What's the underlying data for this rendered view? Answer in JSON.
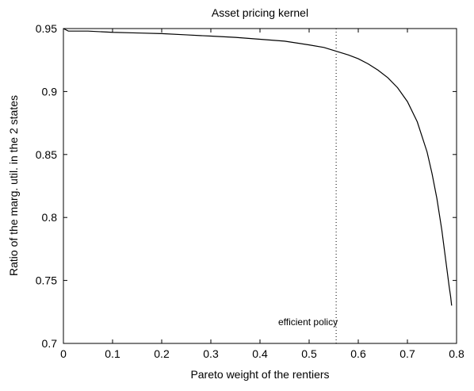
{
  "chart_data": {
    "type": "line",
    "title": "Asset pricing kernel",
    "xlabel": "Pareto weight of the rentiers",
    "ylabel": "Ratio of the marg. util. in the 2 states",
    "xlim": [
      0,
      0.8
    ],
    "ylim": [
      0.7,
      0.95
    ],
    "x_ticks": [
      0,
      0.1,
      0.2,
      0.3,
      0.4,
      0.5,
      0.6,
      0.7,
      0.8
    ],
    "y_ticks": [
      0.7,
      0.75,
      0.8,
      0.85,
      0.9,
      0.95
    ],
    "x_tick_labels": [
      "0",
      "0.1",
      "0.2",
      "0.3",
      "0.4",
      "0.5",
      "0.6",
      "0.7",
      "0.8"
    ],
    "y_tick_labels": [
      "0.7",
      "0.75",
      "0.8",
      "0.85",
      "0.9",
      "0.95"
    ],
    "grid": false,
    "series": [
      {
        "x": [
          0.0,
          0.01,
          0.05,
          0.1,
          0.15,
          0.2,
          0.25,
          0.3,
          0.35,
          0.4,
          0.45,
          0.5,
          0.53,
          0.555,
          0.58,
          0.6,
          0.62,
          0.64,
          0.66,
          0.68,
          0.7,
          0.72,
          0.74,
          0.75,
          0.76,
          0.77,
          0.775,
          0.78,
          0.785,
          0.788,
          0.79
        ],
        "y": [
          0.95,
          0.948,
          0.948,
          0.947,
          0.9465,
          0.946,
          0.945,
          0.944,
          0.943,
          0.9415,
          0.94,
          0.937,
          0.935,
          0.932,
          0.929,
          0.926,
          0.922,
          0.917,
          0.911,
          0.903,
          0.892,
          0.876,
          0.852,
          0.835,
          0.815,
          0.79,
          0.775,
          0.76,
          0.745,
          0.737,
          0.73
        ]
      }
    ],
    "vline": {
      "x": 0.555,
      "style": "dotted"
    },
    "annotation": {
      "text": "efficient policy",
      "x": 0.555,
      "y": 0.717
    }
  }
}
